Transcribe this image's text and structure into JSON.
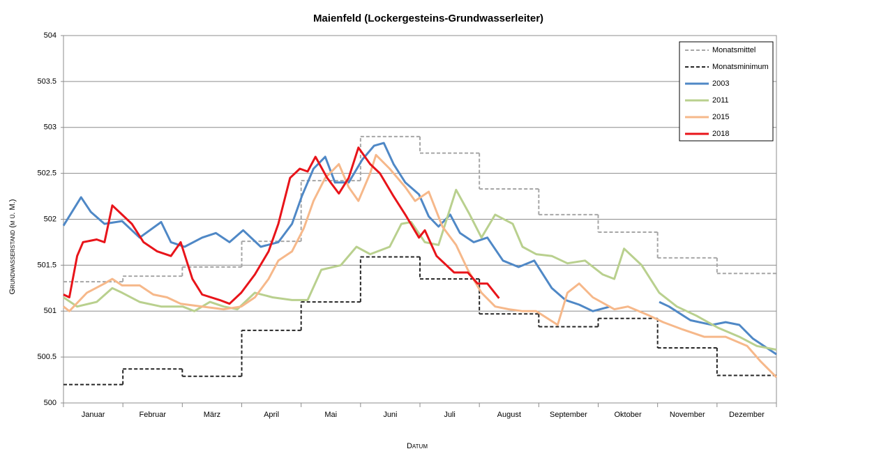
{
  "chart_data": {
    "type": "line",
    "title": "Maienfeld (Lockergesteins-Grundwasserleiter)",
    "x_label": "Datum",
    "y_label": "Grundwasserstand (m ü. M.)",
    "categories": [
      "Januar",
      "Februar",
      "März",
      "April",
      "Mai",
      "Juni",
      "Juli",
      "August",
      "September",
      "Oktober",
      "November",
      "Dezember"
    ],
    "xlim": [
      0,
      365
    ],
    "ylim": [
      500,
      504
    ],
    "yticks": [
      500,
      500.5,
      501,
      501.5,
      502,
      502.5,
      503,
      503.5,
      504
    ],
    "grid": true,
    "legend": "top-right",
    "series": [
      {
        "name": "Monatsmittel",
        "color": "#a6a6a6",
        "dashed": true,
        "values": [
          501.32,
          501.38,
          501.48,
          501.76,
          502.42,
          502.9,
          502.72,
          502.33,
          502.05,
          501.86,
          501.58,
          501.41
        ]
      },
      {
        "name": "Monatsminimum",
        "color": "#262626",
        "dashed": true,
        "values": [
          500.2,
          500.37,
          500.29,
          500.79,
          501.1,
          501.59,
          501.35,
          500.97,
          500.83,
          500.92,
          500.6,
          500.3
        ]
      },
      {
        "name": "2003",
        "color": "#4f88c6",
        "dashed": false,
        "x": [
          0,
          9,
          14,
          21,
          30,
          39,
          50,
          55,
          62,
          71,
          78,
          85,
          92,
          101,
          110,
          117,
          122,
          128,
          134,
          139,
          146,
          153,
          159,
          164,
          169,
          175,
          182,
          187,
          192,
          198,
          203,
          210,
          217,
          225,
          233,
          241,
          250,
          257,
          264,
          271,
          280,
          292,
          305,
          310,
          321,
          332,
          339,
          346,
          353,
          365
        ],
        "values": [
          501.93,
          502.24,
          502.08,
          501.95,
          501.98,
          501.8,
          501.97,
          501.75,
          501.7,
          501.8,
          501.85,
          501.75,
          501.88,
          501.7,
          501.75,
          501.95,
          502.25,
          502.55,
          502.68,
          502.4,
          502.4,
          502.65,
          502.8,
          502.83,
          502.6,
          502.4,
          502.27,
          502.03,
          501.92,
          502.05,
          501.85,
          501.75,
          501.8,
          501.55,
          501.48,
          501.55,
          501.25,
          501.12,
          501.07,
          501.0,
          501.05,
          null,
          501.1,
          501.05,
          500.9,
          500.85,
          500.88,
          500.85,
          500.7,
          500.53
        ]
      },
      {
        "name": "2011",
        "color": "#b9d08e",
        "dashed": false,
        "x": [
          0,
          7,
          17,
          25,
          30,
          39,
          50,
          61,
          67,
          75,
          82,
          89,
          98,
          107,
          117,
          125,
          132,
          142,
          150,
          157,
          167,
          173,
          178,
          185,
          192,
          201,
          208,
          214,
          221,
          230,
          235,
          242,
          250,
          258,
          267,
          276,
          282,
          287,
          296,
          305,
          314,
          324,
          335,
          346,
          355,
          365
        ],
        "values": [
          501.15,
          501.05,
          501.1,
          501.25,
          501.2,
          501.1,
          501.05,
          501.05,
          501.0,
          501.1,
          501.05,
          501.02,
          501.2,
          501.15,
          501.12,
          501.12,
          501.45,
          501.5,
          501.7,
          501.62,
          501.7,
          501.95,
          501.97,
          501.75,
          501.72,
          502.32,
          502.05,
          501.8,
          502.05,
          501.95,
          501.7,
          501.62,
          501.6,
          501.52,
          501.55,
          501.4,
          501.35,
          501.68,
          501.5,
          501.2,
          501.05,
          500.95,
          500.82,
          500.72,
          500.62,
          500.58
        ]
      },
      {
        "name": "2015",
        "color": "#f6b88a",
        "dashed": false,
        "x": [
          0,
          3,
          12,
          21,
          25,
          30,
          39,
          46,
          53,
          60,
          71,
          82,
          91,
          98,
          105,
          110,
          117,
          123,
          128,
          134,
          141,
          146,
          151,
          157,
          160,
          167,
          175,
          180,
          187,
          194,
          201,
          207,
          214,
          221,
          228,
          235,
          242,
          253,
          258,
          264,
          271,
          282,
          289,
          300,
          307,
          317,
          328,
          339,
          350,
          357,
          365
        ],
        "values": [
          501.05,
          501.0,
          501.2,
          501.3,
          501.35,
          501.28,
          501.28,
          501.18,
          501.15,
          501.08,
          501.05,
          501.02,
          501.05,
          501.15,
          501.35,
          501.55,
          501.65,
          501.9,
          502.2,
          502.45,
          502.6,
          502.35,
          502.2,
          502.5,
          502.7,
          502.55,
          502.35,
          502.2,
          502.3,
          501.92,
          501.72,
          501.45,
          501.2,
          501.05,
          501.02,
          501.0,
          501.0,
          500.85,
          501.2,
          501.3,
          501.15,
          501.02,
          501.05,
          500.95,
          500.88,
          500.8,
          500.72,
          500.72,
          500.62,
          500.45,
          500.28
        ]
      },
      {
        "name": "2018",
        "color": "#e8141a",
        "dashed": false,
        "x": [
          0,
          3,
          7,
          10,
          17,
          21,
          25,
          30,
          35,
          41,
          48,
          55,
          60,
          66,
          71,
          80,
          85,
          91,
          98,
          105,
          110,
          116,
          121,
          125,
          129,
          135,
          141,
          146,
          151,
          157,
          162,
          169,
          175,
          182,
          185,
          191,
          200,
          207,
          212,
          217,
          223
        ],
        "values": [
          501.18,
          501.15,
          501.6,
          501.75,
          501.78,
          501.75,
          502.15,
          502.05,
          501.95,
          501.75,
          501.65,
          501.6,
          501.75,
          501.35,
          501.18,
          501.12,
          501.08,
          501.2,
          501.4,
          501.65,
          501.95,
          502.45,
          502.55,
          502.52,
          502.68,
          502.45,
          502.28,
          502.45,
          502.78,
          502.6,
          502.5,
          502.25,
          502.05,
          501.8,
          501.88,
          501.6,
          501.42,
          501.42,
          501.3,
          501.3,
          501.14
        ]
      }
    ]
  }
}
